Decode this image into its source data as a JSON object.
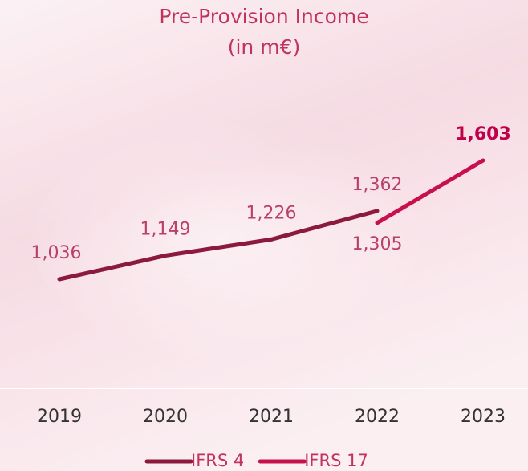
{
  "chart_data": {
    "type": "line",
    "title": "Pre-Provision Income",
    "subtitle": "(in m€)",
    "categories": [
      "2019",
      "2020",
      "2021",
      "2022",
      "2023"
    ],
    "series": [
      {
        "name": "IFRS 4",
        "color": "#8b1a3e",
        "values": [
          1036,
          1149,
          1226,
          1362,
          null
        ],
        "value_labels": [
          "1,036",
          "1,149",
          "1,226",
          "1,362",
          null
        ]
      },
      {
        "name": "IFRS 17",
        "color": "#c8104f",
        "values": [
          null,
          null,
          null,
          1305,
          1603
        ],
        "value_labels": [
          null,
          null,
          null,
          "1,305",
          "1,603"
        ]
      }
    ]
  }
}
